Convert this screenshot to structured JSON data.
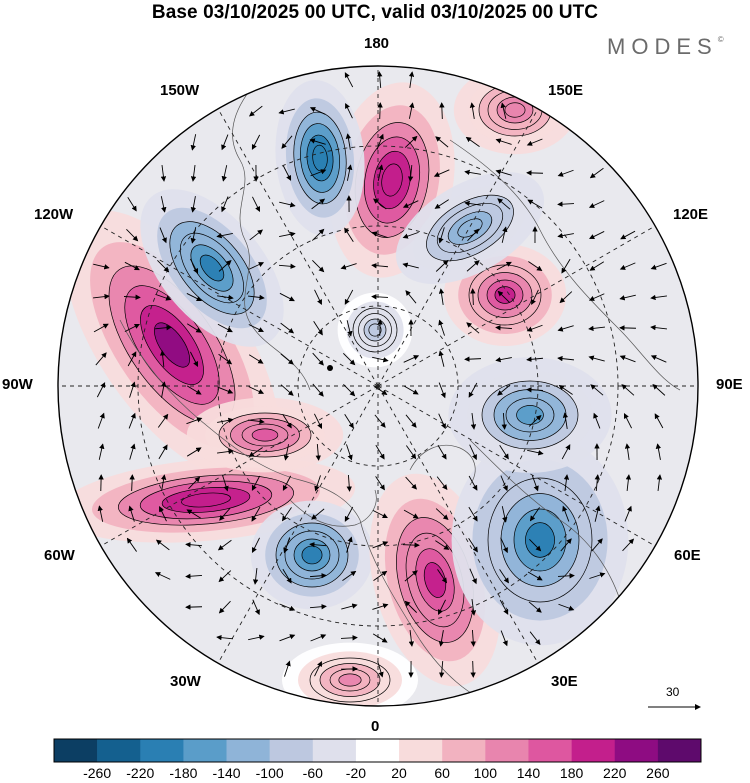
{
  "title": "Base 03/10/2025 00 UTC, valid 03/10/2025 00 UTC",
  "brand": "MODES",
  "brand_mark": "©",
  "longitude_labels": {
    "top": "180",
    "bottom": "0",
    "left": "90W",
    "right": "90E",
    "upper_left": "150W",
    "upper_right": "150E",
    "mid_upper_left": "120W",
    "mid_upper_right": "120E",
    "lower_left": "60W",
    "lower_right": "60E",
    "bottom_left": "30W",
    "bottom_right": "30E"
  },
  "reference_vector": {
    "value": "30"
  },
  "colorbar": {
    "labels": [
      "-260",
      "-220",
      "-180",
      "-140",
      "-100",
      "-60",
      "-20",
      "20",
      "60",
      "100",
      "140",
      "180",
      "220",
      "260"
    ],
    "colors": [
      "#0c3e63",
      "#14608f",
      "#2a7fb3",
      "#5a9dc9",
      "#8fb4d8",
      "#bdc8e0",
      "#dfe0ec",
      "#ffffff",
      "#f8dcdc",
      "#f2b2c0",
      "#e885ae",
      "#de57a0",
      "#c31f8c",
      "#8e0c82",
      "#5e0a6c"
    ]
  },
  "anomaly_centers": [
    {
      "kind": "positive",
      "value": 230
    },
    {
      "kind": "negative",
      "value": -200
    },
    {
      "kind": "positive",
      "value": 220
    },
    {
      "kind": "negative",
      "value": -210
    },
    {
      "kind": "positive",
      "value": 210
    },
    {
      "kind": "negative",
      "value": -190
    },
    {
      "kind": "positive",
      "value": 220
    },
    {
      "kind": "negative",
      "value": -220
    },
    {
      "kind": "positive",
      "value": 200
    },
    {
      "kind": "positive",
      "value": 170
    },
    {
      "kind": "negative",
      "value": -140
    },
    {
      "kind": "negative",
      "value": -170
    },
    {
      "kind": "positive",
      "value": 140
    },
    {
      "kind": "negative",
      "value": -90
    },
    {
      "kind": "positive",
      "value": 110
    }
  ]
}
